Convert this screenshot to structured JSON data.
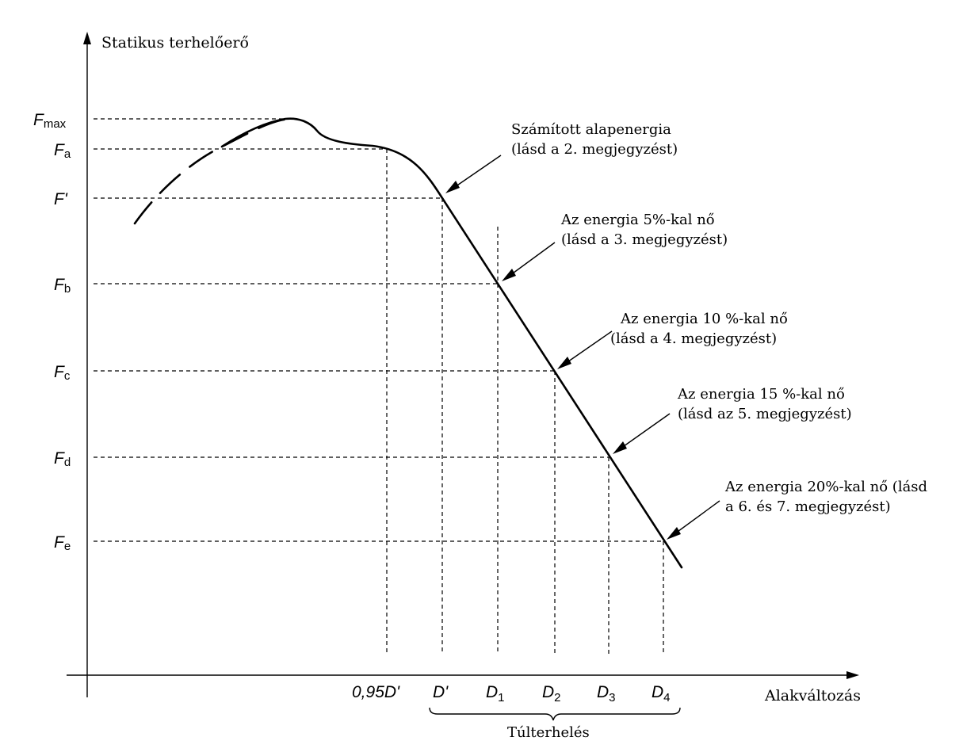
{
  "axes": {
    "y_label": "Statikus terhelőerő",
    "x_label": "Alakváltozás"
  },
  "force_levels": [
    {
      "id": "fmax",
      "base": "F",
      "sub": "max"
    },
    {
      "id": "fa",
      "base": "F",
      "sub": "a"
    },
    {
      "id": "fprime",
      "base": "F'",
      "sub": ""
    },
    {
      "id": "fb",
      "base": "F",
      "sub": "b"
    },
    {
      "id": "fc",
      "base": "F",
      "sub": "c"
    },
    {
      "id": "fd",
      "base": "F",
      "sub": "d"
    },
    {
      "id": "fe",
      "base": "F",
      "sub": "e"
    }
  ],
  "deflection_points": [
    {
      "id": "d095",
      "base": "0,95D'",
      "sub": ""
    },
    {
      "id": "dprime",
      "base": "D'",
      "sub": ""
    },
    {
      "id": "d1",
      "base": "D",
      "sub": "1"
    },
    {
      "id": "d2",
      "base": "D",
      "sub": "2"
    },
    {
      "id": "d3",
      "base": "D",
      "sub": "3"
    },
    {
      "id": "d4",
      "base": "D",
      "sub": "4"
    }
  ],
  "annotations": [
    {
      "id": "base-energy",
      "lines": [
        "Számított alapenergia",
        "(lásd a 2. megjegyzést)"
      ]
    },
    {
      "id": "plus5",
      "lines": [
        "Az energia 5%-kal nő",
        "(lásd a 3. megjegyzést)"
      ]
    },
    {
      "id": "plus10",
      "lines": [
        "Az energia 10 %-kal nő",
        "(lásd a 4. megjegyzést)"
      ]
    },
    {
      "id": "plus15",
      "lines": [
        "Az energia 15 %-kal nő",
        "(lásd az 5. megjegyzést)"
      ]
    },
    {
      "id": "plus20",
      "lines": [
        "Az energia 20%-kal nő (lásd",
        "a 6. és 7. megjegyzést)"
      ]
    }
  ],
  "overload_label": "Túlterhelés"
}
